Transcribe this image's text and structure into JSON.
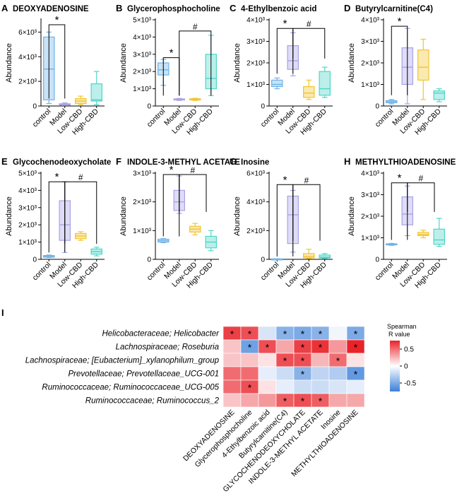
{
  "colors": {
    "control": "#6fb3e8",
    "Model": "#a9a3e6",
    "Low-CBD": "#f2c531",
    "High-CBD": "#4fd6c8",
    "heat_pos": "#e8232a",
    "heat_mid": "#ffffff",
    "heat_neg": "#3b7fd9"
  },
  "chart_data": [
    {
      "type": "box",
      "panel_letter": "A",
      "title": "DEOXYADENOSINE",
      "ylabel": "Abundance",
      "categories": [
        "control",
        "Model",
        "Low-CBD",
        "High-CBD"
      ],
      "ylim": [
        0,
        7000
      ],
      "yticks": [
        {
          "value": 0,
          "label": "0"
        },
        {
          "value": 2000,
          "label": "2×10³"
        },
        {
          "value": 4000,
          "label": "4×10³"
        },
        {
          "value": 6000,
          "label": "6×10³"
        }
      ],
      "boxes": [
        {
          "min": 200,
          "q1": 500,
          "median": 3000,
          "q3": 5600,
          "max": 6000
        },
        {
          "min": 50,
          "q1": 80,
          "median": 120,
          "q3": 180,
          "max": 250
        },
        {
          "min": 100,
          "q1": 200,
          "median": 400,
          "q3": 600,
          "max": 800
        },
        {
          "min": 100,
          "q1": 400,
          "median": 500,
          "q3": 1800,
          "max": 2800
        }
      ],
      "annotations": [
        {
          "label": "*",
          "from": 0,
          "to": 1,
          "y": 6600,
          "drop_to": 600
        }
      ]
    },
    {
      "type": "box",
      "panel_letter": "B",
      "title": "Glycerophosphocholine",
      "ylabel": "Abundance",
      "categories": [
        "control",
        "Model",
        "Low-CBD",
        "High-CBD"
      ],
      "ylim": [
        0,
        5000
      ],
      "yticks": [
        {
          "value": 0,
          "label": "0"
        },
        {
          "value": 1000,
          "label": "1×10³"
        },
        {
          "value": 2000,
          "label": "2×10³"
        },
        {
          "value": 3000,
          "label": "3×10³"
        },
        {
          "value": 4000,
          "label": "4×10³"
        },
        {
          "value": 5000,
          "label": "5×10³"
        }
      ],
      "boxes": [
        {
          "min": 1200,
          "q1": 1800,
          "median": 2100,
          "q3": 2500,
          "max": 2700
        },
        {
          "min": 320,
          "q1": 350,
          "median": 380,
          "q3": 410,
          "max": 440
        },
        {
          "min": 320,
          "q1": 350,
          "median": 390,
          "q3": 420,
          "max": 450
        },
        {
          "min": 600,
          "q1": 1000,
          "median": 1600,
          "q3": 3000,
          "max": 4100
        }
      ],
      "annotations": [
        {
          "label": "*",
          "from": 0,
          "to": 1,
          "y": 2800,
          "drop_to": 600
        },
        {
          "label": "#",
          "from": 1,
          "to": 3,
          "y": 4350,
          "drop_to": 600
        }
      ]
    },
    {
      "type": "box",
      "panel_letter": "C",
      "title": "4-Ethylbenzoic acid",
      "ylabel": "Abundance",
      "categories": [
        "control",
        "Model",
        "Low-CBD",
        "High-CBD"
      ],
      "ylim": [
        0,
        4000
      ],
      "yticks": [
        {
          "value": 0,
          "label": "0"
        },
        {
          "value": 1000,
          "label": "1×10³"
        },
        {
          "value": 2000,
          "label": "2×10³"
        },
        {
          "value": 3000,
          "label": "3×10³"
        },
        {
          "value": 4000,
          "label": "4×10³"
        }
      ],
      "boxes": [
        {
          "min": 800,
          "q1": 900,
          "median": 1000,
          "q3": 1200,
          "max": 1300
        },
        {
          "min": 1400,
          "q1": 1700,
          "median": 2100,
          "q3": 2800,
          "max": 3400
        },
        {
          "min": 300,
          "q1": 400,
          "median": 600,
          "q3": 900,
          "max": 1200
        },
        {
          "min": 400,
          "q1": 500,
          "median": 800,
          "q3": 1600,
          "max": 1800
        }
      ],
      "annotations": [
        {
          "label": "*",
          "from": 0,
          "to": 1,
          "y": 3600,
          "drop_to": 1500
        },
        {
          "label": "#",
          "from": 1,
          "to": 3,
          "y": 3600,
          "drop_to": 2200
        }
      ]
    },
    {
      "type": "box",
      "panel_letter": "D",
      "title": "Butyrylcarnitine(C4)",
      "ylabel": "Abundance",
      "categories": [
        "control",
        "Model",
        "Low-CBD",
        "High-CBD"
      ],
      "ylim": [
        0,
        4000
      ],
      "yticks": [
        {
          "value": 0,
          "label": "0"
        },
        {
          "value": 1000,
          "label": "1×10³"
        },
        {
          "value": 2000,
          "label": "2×10³"
        },
        {
          "value": 3000,
          "label": "3×10³"
        },
        {
          "value": 4000,
          "label": "4×10³"
        }
      ],
      "boxes": [
        {
          "min": 100,
          "q1": 150,
          "median": 200,
          "q3": 250,
          "max": 300
        },
        {
          "min": 100,
          "q1": 1000,
          "median": 1800,
          "q3": 2700,
          "max": 3600
        },
        {
          "min": 300,
          "q1": 1200,
          "median": 1800,
          "q3": 2600,
          "max": 3100
        },
        {
          "min": 200,
          "q1": 300,
          "median": 600,
          "q3": 700,
          "max": 800
        }
      ],
      "annotations": [
        {
          "label": "*",
          "from": 0,
          "to": 1,
          "y": 3700,
          "drop_to": 500
        }
      ]
    },
    {
      "type": "box",
      "panel_letter": "E",
      "title": "Glycochenodeoxycholate",
      "ylabel": "Abundance",
      "categories": [
        "control",
        "Model",
        "Low-CBD",
        "High-CBD"
      ],
      "ylim": [
        0,
        5000
      ],
      "yticks": [
        {
          "value": 0,
          "label": "0"
        },
        {
          "value": 1000,
          "label": "1×10³"
        },
        {
          "value": 2000,
          "label": "2×10³"
        },
        {
          "value": 3000,
          "label": "3×10³"
        },
        {
          "value": 4000,
          "label": "4×10³"
        },
        {
          "value": 5000,
          "label": "5×10³"
        }
      ],
      "boxes": [
        {
          "min": 100,
          "q1": 120,
          "median": 180,
          "q3": 220,
          "max": 250
        },
        {
          "min": 400,
          "q1": 1100,
          "median": 2000,
          "q3": 3400,
          "max": 4500
        },
        {
          "min": 1100,
          "q1": 1200,
          "median": 1350,
          "q3": 1500,
          "max": 1600
        },
        {
          "min": 200,
          "q1": 300,
          "median": 450,
          "q3": 600,
          "max": 700
        }
      ],
      "annotations": [
        {
          "label": "*",
          "from": 0,
          "to": 1,
          "y": 4500,
          "drop_to": 400
        },
        {
          "label": "#",
          "from": 1,
          "to": 3,
          "y": 4500,
          "drop_to": 900
        }
      ]
    },
    {
      "type": "box",
      "panel_letter": "F",
      "title": "INDOLE-3-METHYL ACETATE",
      "ylabel": "Abundance",
      "categories": [
        "control",
        "Model",
        "Low-CBD",
        "High-CBD"
      ],
      "ylim": [
        0,
        3000
      ],
      "yticks": [
        {
          "value": 0,
          "label": "0"
        },
        {
          "value": 1000,
          "label": "1×10³"
        },
        {
          "value": 2000,
          "label": "2×10³"
        },
        {
          "value": 3000,
          "label": "3×10³"
        }
      ],
      "boxes": [
        {
          "min": 580,
          "q1": 600,
          "median": 650,
          "q3": 700,
          "max": 720
        },
        {
          "min": 1600,
          "q1": 1700,
          "median": 2000,
          "q3": 2400,
          "max": 2900
        },
        {
          "min": 850,
          "q1": 950,
          "median": 1050,
          "q3": 1150,
          "max": 1250
        },
        {
          "min": 300,
          "q1": 400,
          "median": 600,
          "q3": 800,
          "max": 1000
        }
      ],
      "annotations": [
        {
          "label": "*",
          "from": 0,
          "to": 1,
          "y": 2950,
          "drop_to": 800
        },
        {
          "label": "#",
          "from": 1,
          "to": 2.7,
          "y": 2950,
          "drop_to": 1650
        }
      ]
    },
    {
      "type": "box",
      "panel_letter": "G",
      "title": "Inosine",
      "ylabel": "Abundance",
      "categories": [
        "control",
        "Model",
        "Low-CBD",
        "High-CBD"
      ],
      "ylim": [
        0,
        6000
      ],
      "yticks": [
        {
          "value": 0,
          "label": "0"
        },
        {
          "value": 2000,
          "label": "2×10³"
        },
        {
          "value": 4000,
          "label": "4×10³"
        },
        {
          "value": 6000,
          "label": "6×10³"
        }
      ],
      "boxes": [
        {
          "min": 0,
          "q1": 10,
          "median": 20,
          "q3": 30,
          "max": 40
        },
        {
          "min": 500,
          "q1": 1100,
          "median": 3100,
          "q3": 4400,
          "max": 4800
        },
        {
          "min": 50,
          "q1": 100,
          "median": 200,
          "q3": 400,
          "max": 700
        },
        {
          "min": 50,
          "q1": 100,
          "median": 150,
          "q3": 300,
          "max": 400
        }
      ],
      "annotations": [
        {
          "label": "*",
          "from": 0,
          "to": 1,
          "y": 5200,
          "drop_to": 200
        },
        {
          "label": "#",
          "from": 1,
          "to": 2.7,
          "y": 5200,
          "drop_to": 1300
        }
      ]
    },
    {
      "type": "box",
      "panel_letter": "H",
      "title": "METHYLTHIOADENOSINE",
      "ylabel": "Abundance",
      "categories": [
        "control",
        "Model",
        "Low-CBD",
        "High-CBD"
      ],
      "ylim": [
        0,
        4000
      ],
      "yticks": [
        {
          "value": 0,
          "label": "0"
        },
        {
          "value": 1000,
          "label": "1×10³"
        },
        {
          "value": 2000,
          "label": "2×10³"
        },
        {
          "value": 3000,
          "label": "3×10³"
        },
        {
          "value": 4000,
          "label": "4×10³"
        }
      ],
      "boxes": [
        {
          "min": 650,
          "q1": 680,
          "median": 700,
          "q3": 720,
          "max": 740
        },
        {
          "min": 1100,
          "q1": 1600,
          "median": 2100,
          "q3": 2900,
          "max": 3400
        },
        {
          "min": 1000,
          "q1": 1100,
          "median": 1150,
          "q3": 1250,
          "max": 1350
        },
        {
          "min": 600,
          "q1": 700,
          "median": 900,
          "q3": 1400,
          "max": 1900
        }
      ],
      "annotations": [
        {
          "label": "*",
          "from": 0,
          "to": 1,
          "y": 3550,
          "drop_to": 900
        },
        {
          "label": "#",
          "from": 1,
          "to": 2.7,
          "y": 3550,
          "drop_to": 2200
        }
      ]
    },
    {
      "type": "heatmap",
      "panel_letter": "I",
      "rows": [
        "Helicobacteraceae; Helicobacter",
        "Lachnospiraceae; Roseburia",
        "Lachnospiraceae; [Eubacterium]_xylanophilum_group",
        "Prevotellaceae; Prevotellaceae_UCG-001",
        "Ruminococcaceae; Ruminococcaceae_UCG-005",
        "Ruminococcaceae; Ruminococcus_2"
      ],
      "columns": [
        "DEOXYADENOSINE",
        "Glycerophosphocholine",
        "4-Ethylbenzoic acid",
        "Butyrylcarnitine(C4)",
        "GLYCOCHENODEOXYCHOLATE",
        "INDOLE-3-METHYL ACETATE",
        "Inosine",
        "METHYLTHIOADENOSINE"
      ],
      "values": [
        [
          0.65,
          0.6,
          -0.15,
          -0.45,
          -0.5,
          -0.45,
          -0.05,
          -0.5
        ],
        [
          0.2,
          -0.55,
          0.6,
          0.3,
          0.65,
          0.7,
          0.35,
          0.75
        ],
        [
          0.2,
          0.2,
          0.1,
          0.6,
          0.6,
          0.25,
          0.5,
          0.1
        ],
        [
          0.5,
          0.5,
          -0.1,
          -0.2,
          -0.45,
          -0.25,
          -0.3,
          -0.6
        ],
        [
          0.5,
          0.6,
          0.1,
          -0.1,
          -0.2,
          -0.2,
          -0.15,
          -0.1
        ],
        [
          0.2,
          0.3,
          0.35,
          0.55,
          0.6,
          0.55,
          0.3,
          0.3
        ]
      ],
      "significant": [
        [
          true,
          true,
          false,
          true,
          true,
          true,
          false,
          true
        ],
        [
          false,
          true,
          true,
          false,
          true,
          true,
          false,
          true
        ],
        [
          false,
          false,
          false,
          true,
          true,
          false,
          true,
          false
        ],
        [
          false,
          false,
          false,
          false,
          true,
          false,
          false,
          true
        ],
        [
          false,
          true,
          false,
          false,
          false,
          false,
          false,
          false
        ],
        [
          false,
          false,
          false,
          true,
          true,
          true,
          false,
          false
        ]
      ],
      "star": "*",
      "colorbar": {
        "title_line1": "Spearman",
        "title_line2": "R value",
        "range": [
          -0.75,
          0.75
        ],
        "ticks": [
          {
            "value": 0.5,
            "label": "0.5"
          },
          {
            "value": 0,
            "label": "0"
          },
          {
            "value": -0.5,
            "label": "-0.5"
          }
        ]
      }
    }
  ]
}
